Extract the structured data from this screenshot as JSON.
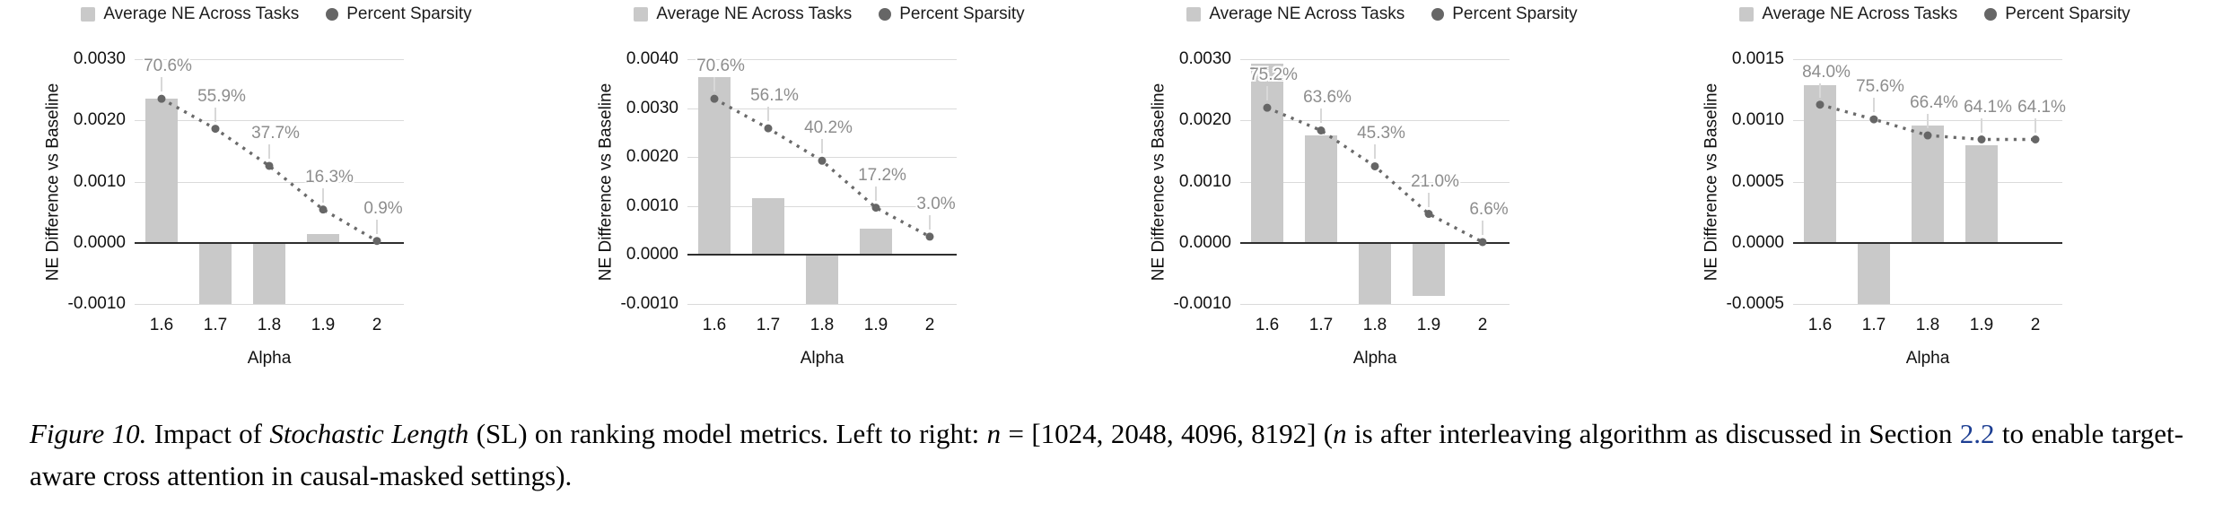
{
  "colors": {
    "bar": "#c9c9c9",
    "sparsity_line": "#6a6a6a",
    "sparsity_point": "#666666",
    "gridline": "#dadada",
    "zero_axis": "#2e2e2e",
    "percent_label": "#8d8d8d",
    "axis_text": "#111111",
    "section_link": "#1c3e92"
  },
  "chart_data": [
    {
      "type": "bar",
      "combo": "bars with dotted percent-sparsity line on hidden secondary axis",
      "title": "",
      "legend": [
        "Average NE Across Tasks",
        "Percent Sparsity"
      ],
      "legend_position": "top",
      "xlabel": "Alpha",
      "ylabel": "NE Difference vs Baseline",
      "categories": [
        "1.6",
        "1.7",
        "1.8",
        "1.9",
        "2"
      ],
      "ylim": [
        -0.001,
        0.003
      ],
      "y_tick_labels": [
        "0.0030",
        "0.0020",
        "0.0010",
        "0.0000",
        "-0.0010"
      ],
      "grid": true,
      "series": [
        {
          "name": "Average NE Across Tasks",
          "type": "bar",
          "values": [
            0.00235,
            -0.001,
            -0.001,
            0.00014,
            0
          ],
          "clipped_at_axis_min": [
            false,
            true,
            true,
            false,
            false
          ]
        },
        {
          "name": "Percent Sparsity",
          "type": "line",
          "unit": "%",
          "values": [
            70.6,
            55.9,
            37.7,
            16.3,
            0.9
          ],
          "point_labels": [
            "70.6%",
            "55.9%",
            "37.7%",
            "16.3%",
            "0.9%"
          ],
          "secondary_axis_pct_at_ylim": [
            -30,
            90
          ]
        }
      ]
    },
    {
      "type": "bar",
      "combo": "bars with dotted percent-sparsity line on hidden secondary axis",
      "title": "",
      "legend": [
        "Average NE Across Tasks",
        "Percent Sparsity"
      ],
      "legend_position": "top",
      "xlabel": "Alpha",
      "ylabel": "NE Difference vs Baseline",
      "categories": [
        "1.6",
        "1.7",
        "1.8",
        "1.9",
        "2"
      ],
      "ylim": [
        -0.001,
        0.004
      ],
      "y_tick_labels": [
        "0.0040",
        "0.0030",
        "0.0020",
        "0.0010",
        "0.0000",
        "-0.0010"
      ],
      "grid": true,
      "series": [
        {
          "name": "Average NE Across Tasks",
          "type": "bar",
          "values": [
            0.00364,
            0.00117,
            -0.001,
            0.00053,
            0
          ],
          "clipped_at_axis_min": [
            false,
            false,
            true,
            false,
            false
          ]
        },
        {
          "name": "Percent Sparsity",
          "type": "line",
          "unit": "%",
          "values": [
            70.6,
            56.1,
            40.2,
            17.2,
            3.0
          ],
          "point_labels": [
            "70.6%",
            "56.1%",
            "40.2%",
            "17.2%",
            "3.0%"
          ],
          "secondary_axis_pct_at_ylim": [
            -30,
            90
          ]
        }
      ]
    },
    {
      "type": "bar",
      "combo": "bars with dotted percent-sparsity line on hidden secondary axis",
      "title": "",
      "legend": [
        "Average NE Across Tasks",
        "Percent Sparsity"
      ],
      "legend_position": "top",
      "xlabel": "Alpha",
      "ylabel": "NE Difference vs Baseline",
      "categories": [
        "1.6",
        "1.7",
        "1.8",
        "1.9",
        "2"
      ],
      "ylim": [
        -0.001,
        0.003
      ],
      "y_tick_labels": [
        "0.0030",
        "0.0020",
        "0.0010",
        "0.0000",
        "-0.0010"
      ],
      "grid": true,
      "series": [
        {
          "name": "Average NE Across Tasks",
          "type": "bar",
          "values": [
            0.00292,
            0.00176,
            -0.001,
            -0.00087,
            0
          ],
          "clipped_at_axis_min": [
            false,
            false,
            true,
            false,
            false
          ]
        },
        {
          "name": "Percent Sparsity",
          "type": "line",
          "unit": "%",
          "values": [
            75.2,
            63.6,
            45.3,
            21.0,
            6.6
          ],
          "point_labels": [
            "75.2%",
            "63.6%",
            "45.3%",
            "21.0%",
            "6.6%"
          ],
          "secondary_axis_pct_at_ylim": [
            -25,
            100
          ]
        }
      ]
    },
    {
      "type": "bar",
      "combo": "bars with dotted percent-sparsity line on hidden secondary axis",
      "title": "",
      "legend": [
        "Average NE Across Tasks",
        "Percent Sparsity"
      ],
      "legend_position": "top",
      "xlabel": "Alpha",
      "ylabel": "NE Difference vs Baseline",
      "categories": [
        "1.6",
        "1.7",
        "1.8",
        "1.9",
        "2"
      ],
      "ylim": [
        -0.0005,
        0.0015
      ],
      "y_tick_labels": [
        "0.0015",
        "0.0010",
        "0.0005",
        "0.0000",
        "-0.0005"
      ],
      "grid": true,
      "series": [
        {
          "name": "Average NE Across Tasks",
          "type": "bar",
          "values": [
            0.00129,
            -0.0005,
            0.00096,
            0.0008,
            0
          ],
          "clipped_at_axis_min": [
            false,
            true,
            false,
            false,
            false
          ]
        },
        {
          "name": "Percent Sparsity",
          "type": "line",
          "unit": "%",
          "values": [
            84.0,
            75.6,
            66.4,
            64.1,
            64.1
          ],
          "point_labels": [
            "84.0%",
            "75.6%",
            "66.4%",
            "64.1%",
            "64.1%"
          ],
          "secondary_axis_pct_at_ylim": [
            -30,
            110
          ]
        }
      ]
    }
  ],
  "caption": {
    "parts": [
      {
        "text": "Figure 10.",
        "style": "italic"
      },
      {
        "text": " Impact of ",
        "style": "normal"
      },
      {
        "text": "Stochastic Length",
        "style": "italic"
      },
      {
        "text": " (SL) on ranking model metrics. Left to right: ",
        "style": "normal"
      },
      {
        "text": "n",
        "style": "math"
      },
      {
        "text": " = [1024, 2048, 4096, 8192] (",
        "style": "normal"
      },
      {
        "text": "n",
        "style": "math"
      },
      {
        "text": " is after interleaving algorithm as discussed in Section ",
        "style": "normal"
      },
      {
        "text": "2.2",
        "style": "link"
      },
      {
        "text": " to enable target-aware cross attention in causal-masked settings).",
        "style": "normal"
      }
    ]
  }
}
